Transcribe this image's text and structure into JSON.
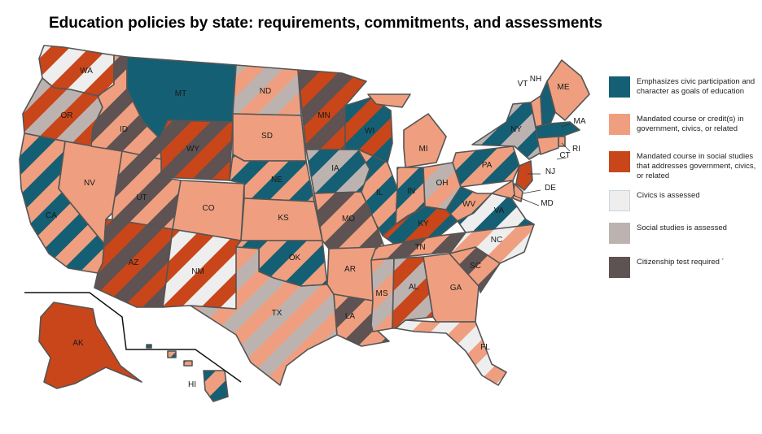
{
  "title": "Education policies by state: requirements, commitments, and assessments",
  "colors": {
    "civic_goals": "#145f73",
    "mandated_civics": "#ef9f7f",
    "mandated_social_studies": "#c8461a",
    "civics_assessed": "#eeeeee",
    "social_studies_assessed": "#bcb3b0",
    "citizenship_test": "#5e5252",
    "border": "#555555"
  },
  "legend": [
    {
      "key": "civic_goals",
      "label": "Emphasizes civic participation and character as goals of education"
    },
    {
      "key": "mandated_civics",
      "label": "Mandated course or credit(s) in government, civics, or related"
    },
    {
      "key": "mandated_social_studies",
      "label": "Mandated course in social studies that addresses government, civics, or related"
    },
    {
      "key": "civics_assessed",
      "label": "Civics is assessed"
    },
    {
      "key": "social_studies_assessed",
      "label": "Social studies  is assessed"
    },
    {
      "key": "citizenship_test",
      "label": "Citizenship test required ´"
    }
  ],
  "states": [
    {
      "abbr": "WA",
      "primary": "civics_assessed",
      "stripe": "mandated_social_studies"
    },
    {
      "abbr": "OR",
      "primary": "social_studies_assessed",
      "stripe": "mandated_social_studies"
    },
    {
      "abbr": "CA",
      "primary": "mandated_civics",
      "stripe": "civic_goals"
    },
    {
      "abbr": "NV",
      "primary": "mandated_civics",
      "stripe": ""
    },
    {
      "abbr": "ID",
      "primary": "mandated_civics",
      "stripe": "citizenship_test"
    },
    {
      "abbr": "MT",
      "primary": "civic_goals",
      "stripe": ""
    },
    {
      "abbr": "WY",
      "primary": "mandated_social_studies",
      "stripe": "citizenship_test"
    },
    {
      "abbr": "UT",
      "primary": "mandated_civics",
      "stripe": "citizenship_test"
    },
    {
      "abbr": "CO",
      "primary": "mandated_civics",
      "stripe": ""
    },
    {
      "abbr": "AZ",
      "primary": "mandated_social_studies",
      "stripe": "citizenship_test"
    },
    {
      "abbr": "NM",
      "primary": "mandated_social_studies",
      "stripe": "civics_assessed"
    },
    {
      "abbr": "ND",
      "primary": "mandated_civics",
      "stripe": "social_studies_assessed"
    },
    {
      "abbr": "SD",
      "primary": "mandated_civics",
      "stripe": ""
    },
    {
      "abbr": "NE",
      "primary": "mandated_civics",
      "stripe": "civic_goals"
    },
    {
      "abbr": "KS",
      "primary": "mandated_civics",
      "stripe": ""
    },
    {
      "abbr": "OK",
      "primary": "mandated_civics",
      "stripe": "civic_goals"
    },
    {
      "abbr": "TX",
      "primary": "social_studies_assessed",
      "stripe": "mandated_civics"
    },
    {
      "abbr": "MN",
      "primary": "mandated_social_studies",
      "stripe": "citizenship_test"
    },
    {
      "abbr": "IA",
      "primary": "civic_goals",
      "stripe": "social_studies_assessed"
    },
    {
      "abbr": "MO",
      "primary": "mandated_civics",
      "stripe": "citizenship_test"
    },
    {
      "abbr": "AR",
      "primary": "mandated_civics",
      "stripe": ""
    },
    {
      "abbr": "LA",
      "primary": "mandated_civics",
      "stripe": "citizenship_test"
    },
    {
      "abbr": "WI",
      "primary": "mandated_social_studies",
      "stripe": "civic_goals"
    },
    {
      "abbr": "IL",
      "primary": "mandated_civics",
      "stripe": "civic_goals"
    },
    {
      "abbr": "MI",
      "primary": "mandated_civics",
      "stripe": ""
    },
    {
      "abbr": "IN",
      "primary": "civic_goals",
      "stripe": "mandated_civics"
    },
    {
      "abbr": "OH",
      "primary": "mandated_civics",
      "stripe": "social_studies_assessed"
    },
    {
      "abbr": "KY",
      "primary": "civic_goals",
      "stripe": "mandated_social_studies"
    },
    {
      "abbr": "TN",
      "primary": "mandated_civics",
      "stripe": "citizenship_test"
    },
    {
      "abbr": "MS",
      "primary": "mandated_civics",
      "stripe": "social_studies_assessed"
    },
    {
      "abbr": "AL",
      "primary": "mandated_social_studies",
      "stripe": "social_studies_assessed"
    },
    {
      "abbr": "GA",
      "primary": "mandated_civics",
      "stripe": ""
    },
    {
      "abbr": "FL",
      "primary": "mandated_civics",
      "stripe": "civics_assessed"
    },
    {
      "abbr": "SC",
      "primary": "mandated_civics",
      "stripe": "citizenship_test"
    },
    {
      "abbr": "NC",
      "primary": "mandated_civics",
      "stripe": "civics_assessed"
    },
    {
      "abbr": "VA",
      "primary": "civic_goals",
      "stripe": "civics_assessed"
    },
    {
      "abbr": "WV",
      "primary": "mandated_civics",
      "stripe": "civic_goals"
    },
    {
      "abbr": "PA",
      "primary": "civic_goals",
      "stripe": "mandated_civics"
    },
    {
      "abbr": "NY",
      "primary": "civic_goals",
      "stripe": "social_studies_assessed"
    },
    {
      "abbr": "ME",
      "primary": "mandated_civics",
      "stripe": ""
    },
    {
      "abbr": "VT",
      "primary": "mandated_civics",
      "stripe": ""
    },
    {
      "abbr": "NH",
      "primary": "civic_goals",
      "stripe": ""
    },
    {
      "abbr": "MA",
      "primary": "civic_goals",
      "stripe": ""
    },
    {
      "abbr": "RI",
      "primary": "mandated_civics",
      "stripe": ""
    },
    {
      "abbr": "CT",
      "primary": "mandated_civics",
      "stripe": ""
    },
    {
      "abbr": "NJ",
      "primary": "mandated_social_studies",
      "stripe": ""
    },
    {
      "abbr": "DE",
      "primary": "mandated_civics",
      "stripe": ""
    },
    {
      "abbr": "MD",
      "primary": "mandated_civics",
      "stripe": ""
    },
    {
      "abbr": "AK",
      "primary": "mandated_social_studies",
      "stripe": ""
    },
    {
      "abbr": "HI",
      "primary": "mandated_civics",
      "stripe": "civic_goals"
    }
  ]
}
